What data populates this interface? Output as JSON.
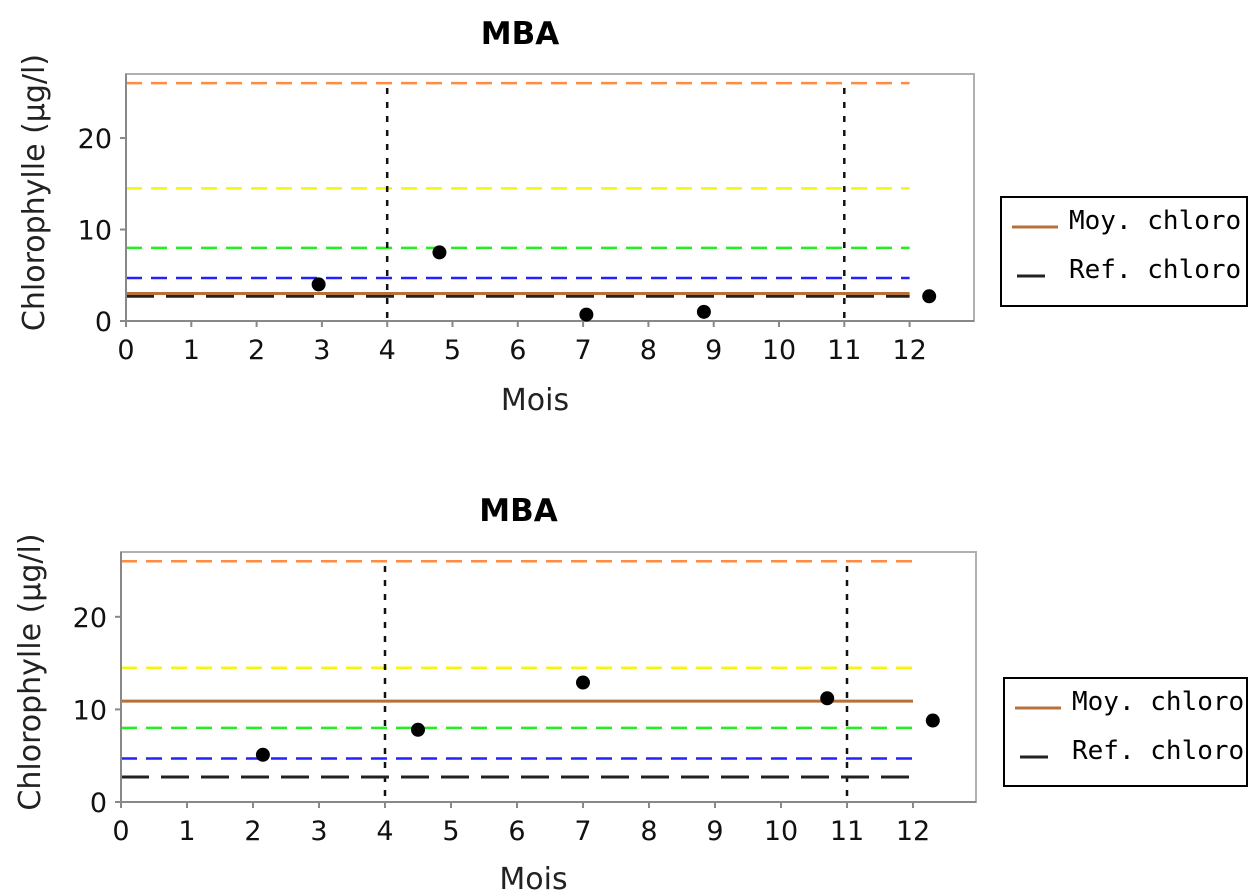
{
  "chart_data": [
    {
      "type": "scatter",
      "title": "MBA",
      "xlabel": "Mois",
      "ylabel": "Chlorophylle (µg/l)",
      "xlim": [
        0,
        13
      ],
      "ylim": [
        0,
        27
      ],
      "xticks": [
        0,
        1,
        2,
        3,
        4,
        5,
        6,
        7,
        8,
        9,
        10,
        11,
        12
      ],
      "yticks": [
        0,
        10,
        20
      ],
      "grid": false,
      "legend_position": "right",
      "points": [
        {
          "x": 2.95,
          "y": 4.0
        },
        {
          "x": 4.8,
          "y": 7.5
        },
        {
          "x": 7.05,
          "y": 0.7
        },
        {
          "x": 8.85,
          "y": 1.0
        },
        {
          "x": 12.3,
          "y": 2.7
        }
      ],
      "threshold_lines": [
        {
          "y": 26,
          "color": "#ff8c40"
        },
        {
          "y": 14.5,
          "color": "#f5f510"
        },
        {
          "y": 8,
          "color": "#22ee22"
        },
        {
          "y": 4.7,
          "color": "#2222ff"
        }
      ],
      "vertical_lines": [
        4,
        11
      ],
      "series": [
        {
          "name": "Moy. chloro",
          "y": 3.0,
          "color": "#b8703a"
        },
        {
          "name": "Ref. chloro",
          "y": 2.7,
          "color": "#222222"
        }
      ]
    },
    {
      "type": "scatter",
      "title": "MBA",
      "xlabel": "Mois",
      "ylabel": "Chlorophylle (µg/l)",
      "xlim": [
        0,
        13
      ],
      "ylim": [
        0,
        27
      ],
      "xticks": [
        0,
        1,
        2,
        3,
        4,
        5,
        6,
        7,
        8,
        9,
        10,
        11,
        12
      ],
      "yticks": [
        0,
        10,
        20
      ],
      "grid": false,
      "legend_position": "right",
      "points": [
        {
          "x": 2.15,
          "y": 5.1
        },
        {
          "x": 4.5,
          "y": 7.8
        },
        {
          "x": 7.0,
          "y": 12.9
        },
        {
          "x": 10.7,
          "y": 11.2
        },
        {
          "x": 12.3,
          "y": 8.8
        }
      ],
      "threshold_lines": [
        {
          "y": 26,
          "color": "#ff8c40"
        },
        {
          "y": 14.5,
          "color": "#f5f510"
        },
        {
          "y": 8,
          "color": "#22ee22"
        },
        {
          "y": 4.7,
          "color": "#2222ff"
        }
      ],
      "vertical_lines": [
        4,
        11
      ],
      "series": [
        {
          "name": "Moy. chloro",
          "y": 10.9,
          "color": "#b8703a"
        },
        {
          "name": "Ref. chloro",
          "y": 2.7,
          "color": "#222222"
        }
      ]
    }
  ]
}
